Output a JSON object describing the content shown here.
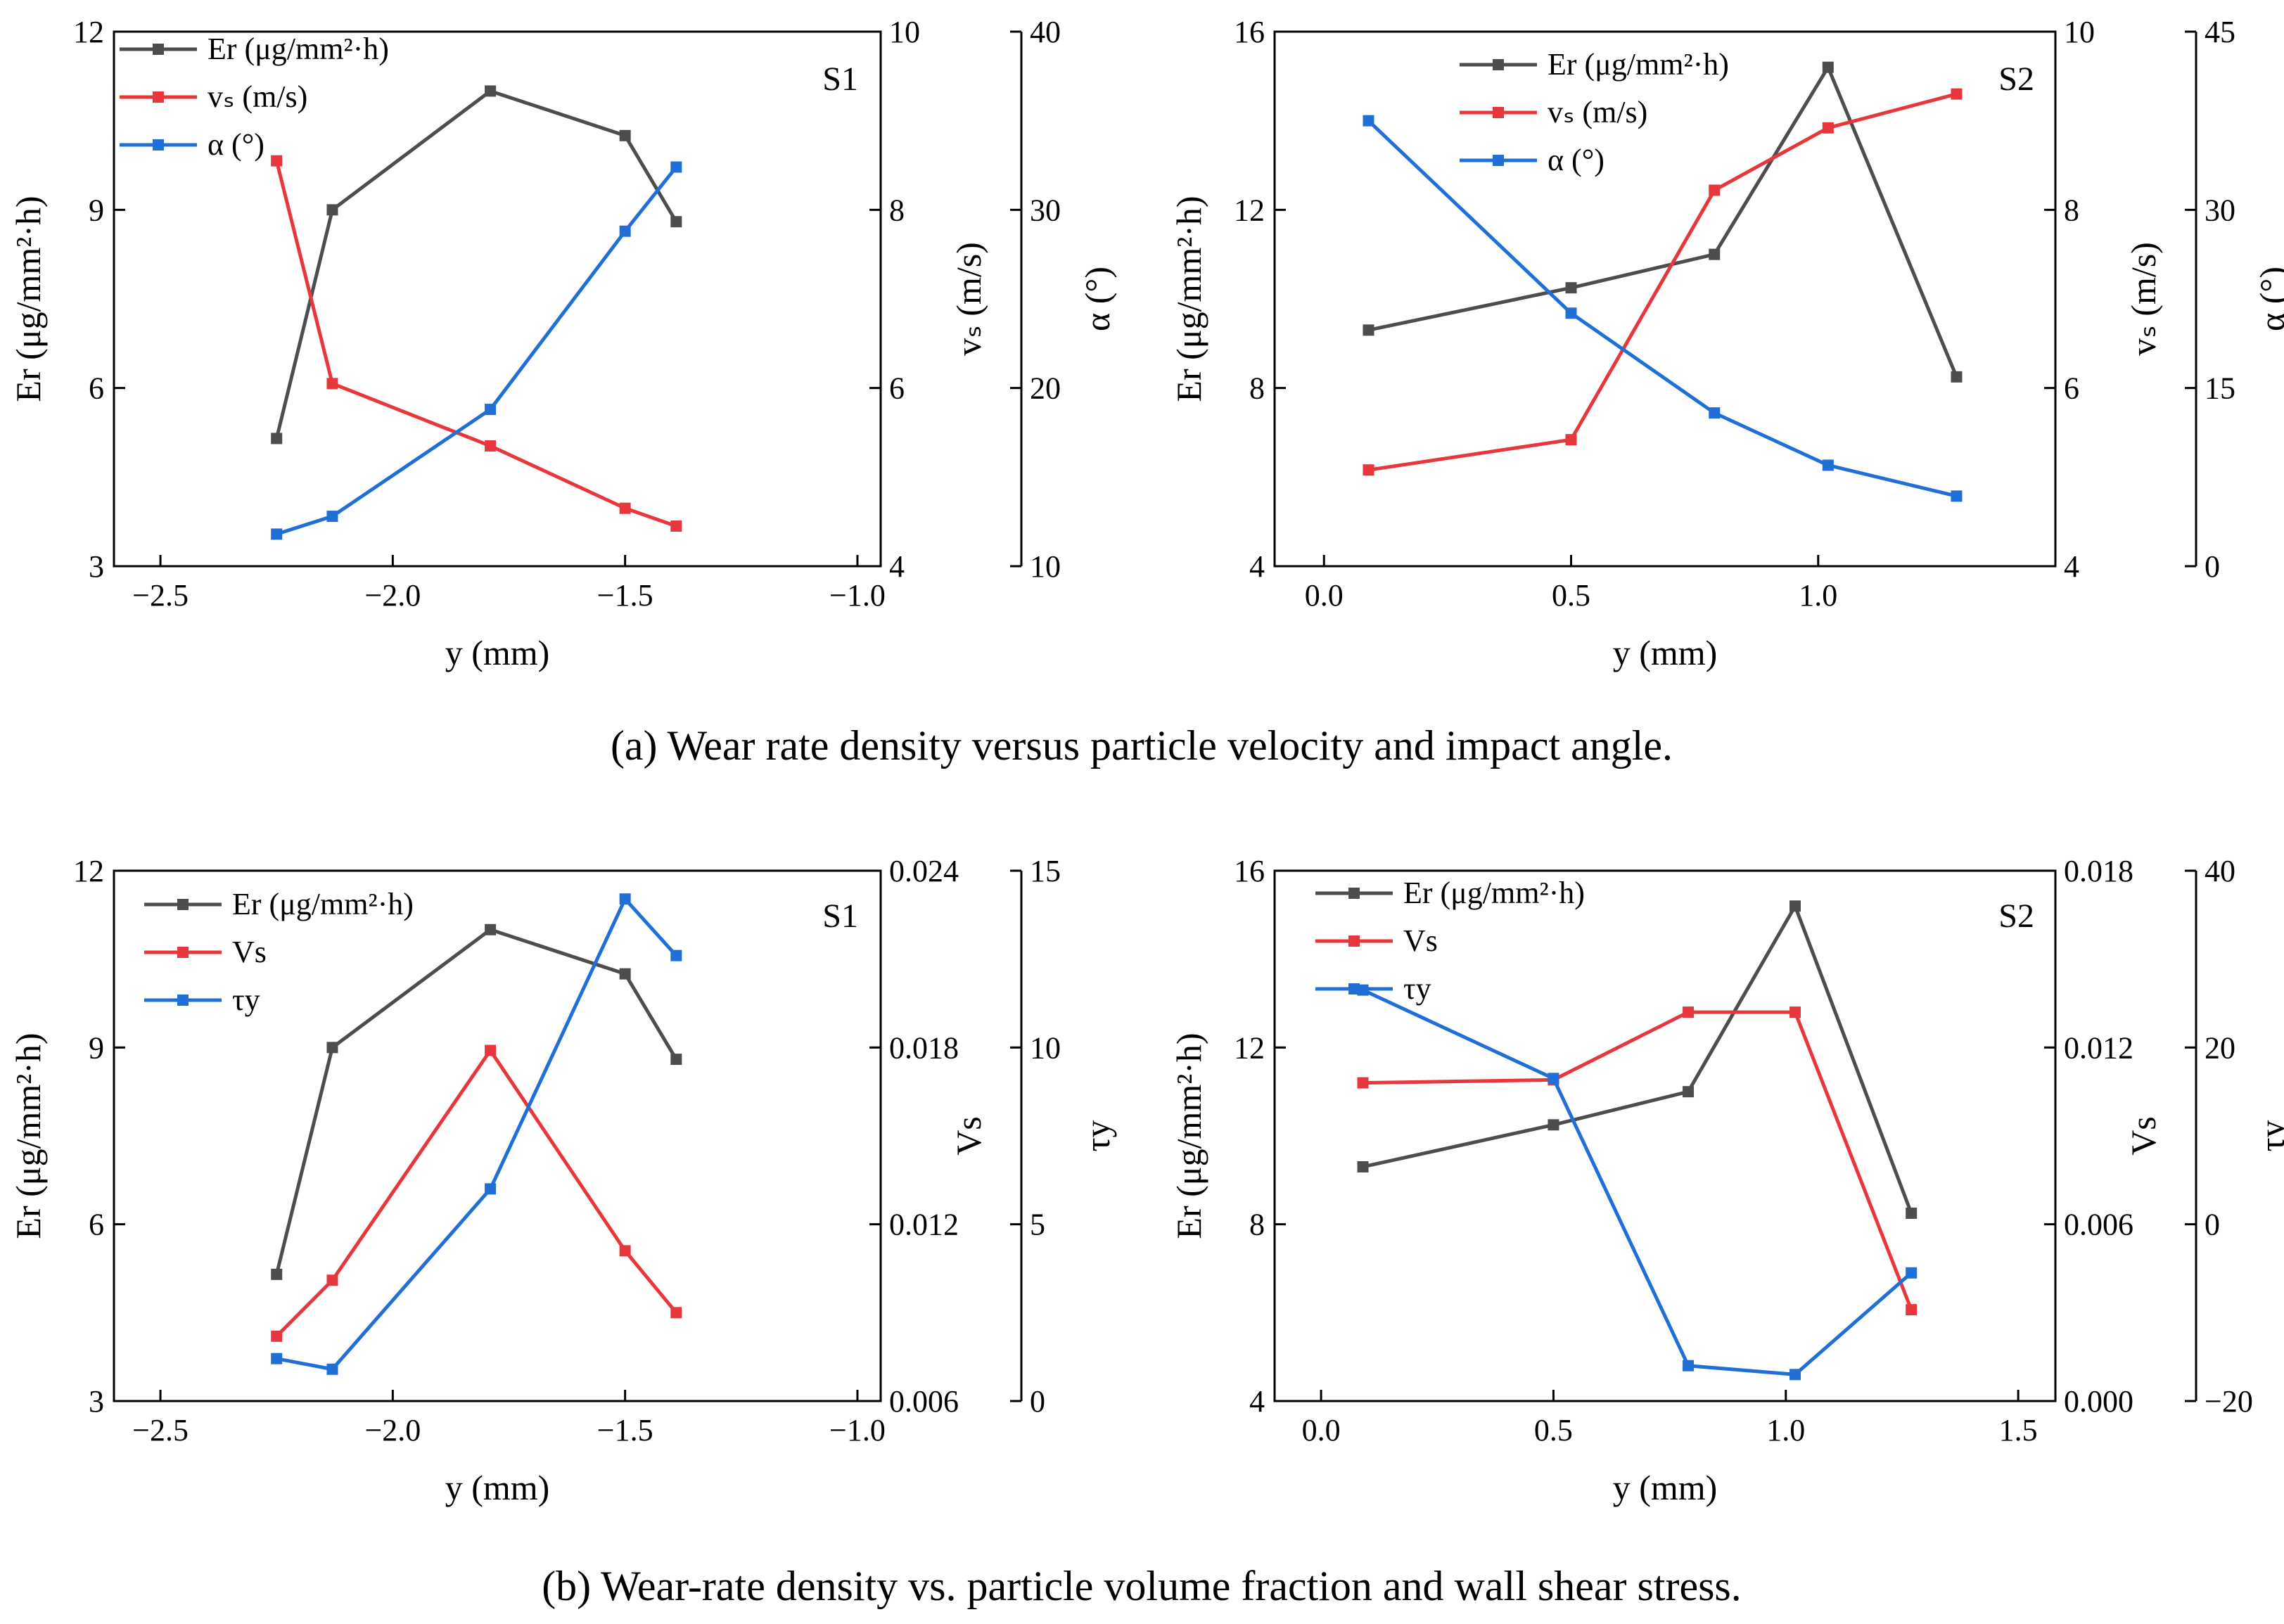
{
  "captions": {
    "a": "(a) Wear rate density versus particle velocity and impact angle.",
    "b": "(b) Wear-rate density vs. particle volume fraction and wall shear stress."
  },
  "colors": {
    "er": "#4d4d4d",
    "red": "#e8373c",
    "blue": "#1f6fd6"
  },
  "chart_data": [
    {
      "id": "a-S1",
      "type": "line",
      "tag": "S1",
      "xlabel": "y (mm)",
      "xlim": [
        -2.6,
        -0.95
      ],
      "xticks": [
        -2.5,
        -2.0,
        -1.5,
        -1.0
      ],
      "xtick_labels": [
        "−2.5",
        "−2.0",
        "−1.5",
        "−1.0"
      ],
      "axes": [
        {
          "label": "Er (μg/mm²·h)",
          "lim": [
            3,
            12
          ],
          "ticks": [
            3,
            6,
            9,
            12
          ],
          "tick_labels": [
            "3",
            "6",
            "9",
            "12"
          ]
        },
        {
          "label": "vₛ (m/s)",
          "lim": [
            4,
            10
          ],
          "ticks": [
            4,
            6,
            8,
            10
          ],
          "tick_labels": [
            "4",
            "6",
            "8",
            "10"
          ]
        },
        {
          "label": "α (°)",
          "lim": [
            10,
            40
          ],
          "ticks": [
            10,
            20,
            30,
            40
          ],
          "tick_labels": [
            "10",
            "20",
            "30",
            "40"
          ]
        }
      ],
      "series": [
        {
          "name": "Er (μg/mm²·h)",
          "axis": 0,
          "color": "#4d4d4d",
          "x": [
            -2.25,
            -2.13,
            -1.79,
            -1.5,
            -1.39
          ],
          "y": [
            5.15,
            9.0,
            11.0,
            10.25,
            8.8
          ]
        },
        {
          "name": "vₛ (m/s)",
          "axis": 1,
          "color": "#e8373c",
          "x": [
            -2.25,
            -2.13,
            -1.79,
            -1.5,
            -1.39
          ],
          "y": [
            8.55,
            6.05,
            5.35,
            4.65,
            4.45
          ]
        },
        {
          "name": "α (°)",
          "axis": 2,
          "color": "#1f6fd6",
          "x": [
            -2.25,
            -2.13,
            -1.79,
            -1.5,
            -1.39
          ],
          "y": [
            11.8,
            12.8,
            18.8,
            28.8,
            32.4
          ]
        }
      ]
    },
    {
      "id": "a-S2",
      "type": "line",
      "tag": "S2",
      "xlabel": "y (mm)",
      "xlim": [
        -0.1,
        1.48
      ],
      "xticks": [
        0.0,
        0.5,
        1.0
      ],
      "xtick_labels": [
        "0.0",
        "0.5",
        "1.0"
      ],
      "axes": [
        {
          "label": "Er (μg/mm²·h)",
          "lim": [
            4,
            16
          ],
          "ticks": [
            4,
            8,
            12,
            16
          ],
          "tick_labels": [
            "4",
            "8",
            "12",
            "16"
          ]
        },
        {
          "label": "vₛ (m/s)",
          "lim": [
            4,
            10
          ],
          "ticks": [
            4,
            6,
            8,
            10
          ],
          "tick_labels": [
            "4",
            "6",
            "8",
            "10"
          ]
        },
        {
          "label": "α (°)",
          "lim": [
            0,
            45
          ],
          "ticks": [
            0,
            15,
            30,
            45
          ],
          "tick_labels": [
            "0",
            "15",
            "30",
            "45"
          ]
        }
      ],
      "series": [
        {
          "name": "Er (μg/mm²·h)",
          "axis": 0,
          "color": "#4d4d4d",
          "x": [
            0.09,
            0.5,
            0.79,
            1.02,
            1.28
          ],
          "y": [
            9.3,
            10.25,
            11.0,
            15.2,
            8.25
          ]
        },
        {
          "name": "vₛ (m/s)",
          "axis": 1,
          "color": "#e8373c",
          "x": [
            0.09,
            0.5,
            0.79,
            1.02,
            1.28
          ],
          "y": [
            5.08,
            5.42,
            8.22,
            8.92,
            9.3
          ]
        },
        {
          "name": "α (°)",
          "axis": 2,
          "color": "#1f6fd6",
          "x": [
            0.09,
            0.5,
            0.79,
            1.02,
            1.28
          ],
          "y": [
            37.5,
            21.3,
            12.9,
            8.5,
            5.9
          ]
        }
      ]
    },
    {
      "id": "b-S1",
      "type": "line",
      "tag": "S1",
      "xlabel": "y (mm)",
      "xlim": [
        -2.6,
        -0.95
      ],
      "xticks": [
        -2.5,
        -2.0,
        -1.5,
        -1.0
      ],
      "xtick_labels": [
        "−2.5",
        "−2.0",
        "−1.5",
        "−1.0"
      ],
      "axes": [
        {
          "label": "Er (μg/mm²·h)",
          "lim": [
            3,
            12
          ],
          "ticks": [
            3,
            6,
            9,
            12
          ],
          "tick_labels": [
            "3",
            "6",
            "9",
            "12"
          ]
        },
        {
          "label": "Vs",
          "lim": [
            0.006,
            0.024
          ],
          "ticks": [
            0.006,
            0.012,
            0.018,
            0.024
          ],
          "tick_labels": [
            "0.006",
            "0.012",
            "0.018",
            "0.024"
          ]
        },
        {
          "label": "τy",
          "lim": [
            0,
            15
          ],
          "ticks": [
            0,
            5,
            10,
            15
          ],
          "tick_labels": [
            "0",
            "5",
            "10",
            "15"
          ]
        }
      ],
      "series": [
        {
          "name": "Er (μg/mm²·h)",
          "axis": 0,
          "color": "#4d4d4d",
          "x": [
            -2.25,
            -2.13,
            -1.79,
            -1.5,
            -1.39
          ],
          "y": [
            5.15,
            9.0,
            11.0,
            10.25,
            8.8
          ]
        },
        {
          "name": "Vs",
          "axis": 1,
          "color": "#e8373c",
          "x": [
            -2.25,
            -2.13,
            -1.79,
            -1.5,
            -1.39
          ],
          "y": [
            0.0082,
            0.0101,
            0.0179,
            0.0111,
            0.009
          ]
        },
        {
          "name": "τy",
          "axis": 2,
          "color": "#1f6fd6",
          "x": [
            -2.25,
            -2.13,
            -1.79,
            -1.5,
            -1.39
          ],
          "y": [
            1.2,
            0.9,
            6.0,
            14.2,
            12.6
          ]
        }
      ]
    },
    {
      "id": "b-S2",
      "type": "line",
      "tag": "S2",
      "xlabel": "y (mm)",
      "xlim": [
        -0.1,
        1.58
      ],
      "xticks": [
        0.0,
        0.5,
        1.0,
        1.5
      ],
      "xtick_labels": [
        "0.0",
        "0.5",
        "1.0",
        "1.5"
      ],
      "axes": [
        {
          "label": "Er (μg/mm²·h)",
          "lim": [
            4,
            16
          ],
          "ticks": [
            4,
            8,
            12,
            16
          ],
          "tick_labels": [
            "4",
            "8",
            "12",
            "16"
          ]
        },
        {
          "label": "Vs",
          "lim": [
            0.0,
            0.018
          ],
          "ticks": [
            0.0,
            0.006,
            0.012,
            0.018
          ],
          "tick_labels": [
            "0.000",
            "0.006",
            "0.012",
            "0.018"
          ]
        },
        {
          "label": "τy",
          "lim": [
            -20,
            40
          ],
          "ticks": [
            -20,
            0,
            20,
            40
          ],
          "tick_labels": [
            "−20",
            "0",
            "20",
            "40"
          ]
        }
      ],
      "series": [
        {
          "name": "Er (μg/mm²·h)",
          "axis": 0,
          "color": "#4d4d4d",
          "x": [
            0.09,
            0.5,
            0.79,
            1.02,
            1.27
          ],
          "y": [
            9.3,
            10.25,
            11.0,
            15.2,
            8.25
          ]
        },
        {
          "name": "Vs",
          "axis": 1,
          "color": "#e8373c",
          "x": [
            0.09,
            0.5,
            0.79,
            1.02,
            1.27
          ],
          "y": [
            0.0108,
            0.0109,
            0.0132,
            0.0132,
            0.0031
          ]
        },
        {
          "name": "τy",
          "axis": 2,
          "color": "#1f6fd6",
          "x": [
            0.09,
            0.5,
            0.79,
            1.02,
            1.27
          ],
          "y": [
            26.5,
            16.5,
            -16.0,
            -17.0,
            -5.5
          ]
        }
      ]
    }
  ]
}
